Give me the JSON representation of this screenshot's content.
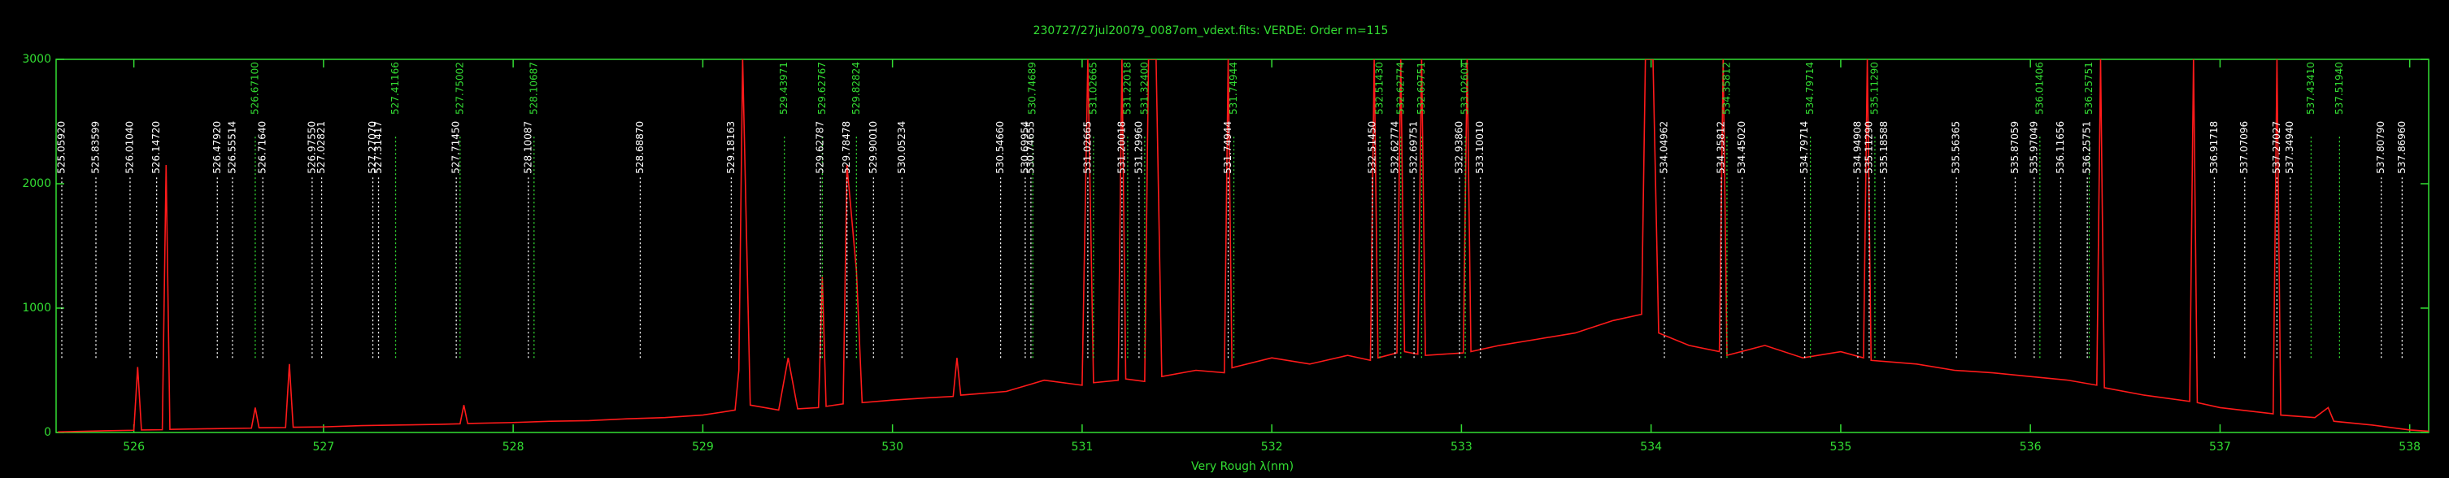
{
  "chart_data": {
    "type": "line",
    "title": "230727/27jul20079_0087om_vdext.fits: VERDE: Order m=115",
    "xlabel": "Very Rough λ(nm)",
    "xlim": [
      525.59,
      538.1
    ],
    "xticks": [
      526,
      527,
      528,
      529,
      530,
      531,
      532,
      533,
      534,
      535,
      536,
      537,
      538
    ],
    "ylim": [
      0,
      3000
    ],
    "yticks": [
      0,
      1000,
      2000,
      3000
    ],
    "axis_color": "#33dd33",
    "series": [
      {
        "color": "#ff1a1a",
        "x": [
          525.6,
          525.8,
          526.0,
          526.02,
          526.04,
          526.15,
          526.17,
          526.19,
          526.4,
          526.62,
          526.64,
          526.66,
          526.8,
          526.82,
          526.84,
          527.0,
          527.2,
          527.4,
          527.6,
          527.72,
          527.74,
          527.76,
          528.0,
          528.2,
          528.4,
          528.6,
          528.8,
          529.0,
          529.17,
          529.19,
          529.21,
          529.25,
          529.4,
          529.45,
          529.5,
          529.61,
          529.63,
          529.65,
          529.74,
          529.76,
          529.81,
          529.84,
          530.0,
          530.2,
          530.32,
          530.34,
          530.36,
          530.6,
          530.8,
          531.0,
          531.03,
          531.06,
          531.19,
          531.21,
          531.23,
          531.33,
          531.35,
          531.39,
          531.42,
          531.6,
          531.75,
          531.77,
          531.79,
          532.0,
          532.2,
          532.4,
          532.52,
          532.54,
          532.56,
          532.66,
          532.68,
          532.7,
          532.77,
          532.79,
          532.81,
          533.01,
          533.03,
          533.05,
          533.2,
          533.4,
          533.6,
          533.8,
          533.95,
          533.97,
          534.01,
          534.04,
          534.2,
          534.36,
          534.38,
          534.4,
          534.6,
          534.8,
          535.0,
          535.12,
          535.14,
          535.16,
          535.4,
          535.6,
          535.8,
          536.0,
          536.2,
          536.35,
          536.37,
          536.39,
          536.6,
          536.84,
          536.86,
          536.88,
          537.0,
          537.28,
          537.3,
          537.32,
          537.5,
          537.57,
          537.6,
          537.8,
          538.0,
          538.1
        ],
        "values": [
          5,
          12,
          18,
          527,
          20,
          22,
          2150,
          25,
          30,
          35,
          200,
          38,
          40,
          550,
          42,
          45,
          55,
          60,
          65,
          70,
          220,
          72,
          80,
          90,
          95,
          110,
          120,
          140,
          180,
          500,
          3000,
          220,
          180,
          600,
          190,
          200,
          1250,
          210,
          230,
          2150,
          1300,
          240,
          260,
          280,
          290,
          600,
          300,
          330,
          420,
          380,
          3000,
          400,
          420,
          3000,
          430,
          410,
          3000,
          3000,
          450,
          500,
          480,
          3000,
          520,
          600,
          550,
          620,
          580,
          3000,
          600,
          640,
          3000,
          650,
          630,
          3000,
          620,
          640,
          3000,
          650,
          700,
          750,
          800,
          900,
          950,
          3000,
          3000,
          800,
          700,
          650,
          3000,
          620,
          700,
          600,
          650,
          600,
          3000,
          580,
          550,
          500,
          480,
          450,
          420,
          380,
          3000,
          360,
          300,
          250,
          3000,
          240,
          200,
          150,
          3000,
          140,
          120,
          200,
          90,
          60,
          20,
          10
        ]
      }
    ],
    "annotations": [
      {
        "x": 525.62,
        "label": "525.05920",
        "color": "#ffffff"
      },
      {
        "x": 525.8,
        "label": "525.83599",
        "color": "#ffffff"
      },
      {
        "x": 525.98,
        "label": "526.01040",
        "color": "#ffffff"
      },
      {
        "x": 526.12,
        "label": "526.14720",
        "color": "#ffffff"
      },
      {
        "x": 526.44,
        "label": "526.47920",
        "color": "#ffffff"
      },
      {
        "x": 526.52,
        "label": "526.55514",
        "color": "#ffffff"
      },
      {
        "x": 526.64,
        "label": "526.67100",
        "color": "#33dd33"
      },
      {
        "x": 526.68,
        "label": "526.71640",
        "color": "#ffffff"
      },
      {
        "x": 526.94,
        "label": "526.97550",
        "color": "#ffffff"
      },
      {
        "x": 526.99,
        "label": "527.02821",
        "color": "#ffffff"
      },
      {
        "x": 527.26,
        "label": "527.27070",
        "color": "#ffffff"
      },
      {
        "x": 527.29,
        "label": "527.31417",
        "color": "#ffffff"
      },
      {
        "x": 527.38,
        "label": "527.41166",
        "color": "#33dd33"
      },
      {
        "x": 527.7,
        "label": "527.71450",
        "color": "#ffffff"
      },
      {
        "x": 527.72,
        "label": "527.75002",
        "color": "#33dd33"
      },
      {
        "x": 528.08,
        "label": "528.10087",
        "color": "#ffffff"
      },
      {
        "x": 528.11,
        "label": "528.10687",
        "color": "#33dd33"
      },
      {
        "x": 528.67,
        "label": "528.68870",
        "color": "#ffffff"
      },
      {
        "x": 529.15,
        "label": "529.18163",
        "color": "#ffffff"
      },
      {
        "x": 529.43,
        "label": "529.43971",
        "color": "#33dd33"
      },
      {
        "x": 529.62,
        "label": "529.62787",
        "color": "#ffffff"
      },
      {
        "x": 529.63,
        "label": "529.62767",
        "color": "#33dd33"
      },
      {
        "x": 529.76,
        "label": "529.78478",
        "color": "#ffffff"
      },
      {
        "x": 529.81,
        "label": "529.82824",
        "color": "#33dd33"
      },
      {
        "x": 529.9,
        "label": "529.90010",
        "color": "#ffffff"
      },
      {
        "x": 530.05,
        "label": "530.05234",
        "color": "#ffffff"
      },
      {
        "x": 530.57,
        "label": "530.54660",
        "color": "#ffffff"
      },
      {
        "x": 530.7,
        "label": "530.69954",
        "color": "#ffffff"
      },
      {
        "x": 530.73,
        "label": "530.74655",
        "color": "#ffffff"
      },
      {
        "x": 530.74,
        "label": "530.74689",
        "color": "#33dd33"
      },
      {
        "x": 531.03,
        "label": "531.02665",
        "color": "#ffffff"
      },
      {
        "x": 531.06,
        "label": "531.02665",
        "color": "#33dd33"
      },
      {
        "x": 531.21,
        "label": "531.20018",
        "color": "#ffffff"
      },
      {
        "x": 531.24,
        "label": "531.22018",
        "color": "#33dd33"
      },
      {
        "x": 531.3,
        "label": "531.29960",
        "color": "#ffffff"
      },
      {
        "x": 531.33,
        "label": "531.32400",
        "color": "#33dd33"
      },
      {
        "x": 531.77,
        "label": "531.74944",
        "color": "#ffffff"
      },
      {
        "x": 531.8,
        "label": "531.74944",
        "color": "#33dd33"
      },
      {
        "x": 532.53,
        "label": "532.51450",
        "color": "#ffffff"
      },
      {
        "x": 532.57,
        "label": "532.51430",
        "color": "#33dd33"
      },
      {
        "x": 532.65,
        "label": "532.62774",
        "color": "#ffffff"
      },
      {
        "x": 532.68,
        "label": "532.62774",
        "color": "#33dd33"
      },
      {
        "x": 532.75,
        "label": "532.69751",
        "color": "#ffffff"
      },
      {
        "x": 532.79,
        "label": "532.69751",
        "color": "#33dd33"
      },
      {
        "x": 532.99,
        "label": "532.93860",
        "color": "#ffffff"
      },
      {
        "x": 533.02,
        "label": "533.02604",
        "color": "#33dd33"
      },
      {
        "x": 533.1,
        "label": "533.10010",
        "color": "#ffffff"
      },
      {
        "x": 534.07,
        "label": "534.04962",
        "color": "#ffffff"
      },
      {
        "x": 534.37,
        "label": "534.35812",
        "color": "#ffffff"
      },
      {
        "x": 534.4,
        "label": "534.35812",
        "color": "#33dd33"
      },
      {
        "x": 534.48,
        "label": "534.45020",
        "color": "#ffffff"
      },
      {
        "x": 534.81,
        "label": "534.79714",
        "color": "#ffffff"
      },
      {
        "x": 534.84,
        "label": "534.79714",
        "color": "#33dd33"
      },
      {
        "x": 535.09,
        "label": "534.94908",
        "color": "#ffffff"
      },
      {
        "x": 535.15,
        "label": "535.11290",
        "color": "#ffffff"
      },
      {
        "x": 535.18,
        "label": "535.11290",
        "color": "#33dd33"
      },
      {
        "x": 535.23,
        "label": "535.18588",
        "color": "#ffffff"
      },
      {
        "x": 535.61,
        "label": "535.56365",
        "color": "#ffffff"
      },
      {
        "x": 535.92,
        "label": "535.87059",
        "color": "#ffffff"
      },
      {
        "x": 536.02,
        "label": "535.97049",
        "color": "#ffffff"
      },
      {
        "x": 536.05,
        "label": "536.01406",
        "color": "#33dd33"
      },
      {
        "x": 536.16,
        "label": "536.11656",
        "color": "#ffffff"
      },
      {
        "x": 536.3,
        "label": "536.25751",
        "color": "#ffffff"
      },
      {
        "x": 536.31,
        "label": "536.25751",
        "color": "#33dd33"
      },
      {
        "x": 536.97,
        "label": "536.91718",
        "color": "#ffffff"
      },
      {
        "x": 537.13,
        "label": "537.07096",
        "color": "#ffffff"
      },
      {
        "x": 537.3,
        "label": "537.27027",
        "color": "#ffffff"
      },
      {
        "x": 537.37,
        "label": "537.34940",
        "color": "#ffffff"
      },
      {
        "x": 537.48,
        "label": "537.43410",
        "color": "#33dd33"
      },
      {
        "x": 537.63,
        "label": "537.51940",
        "color": "#33dd33"
      },
      {
        "x": 537.85,
        "label": "537.80790",
        "color": "#ffffff"
      },
      {
        "x": 537.96,
        "label": "537.86960",
        "color": "#ffffff"
      }
    ]
  }
}
